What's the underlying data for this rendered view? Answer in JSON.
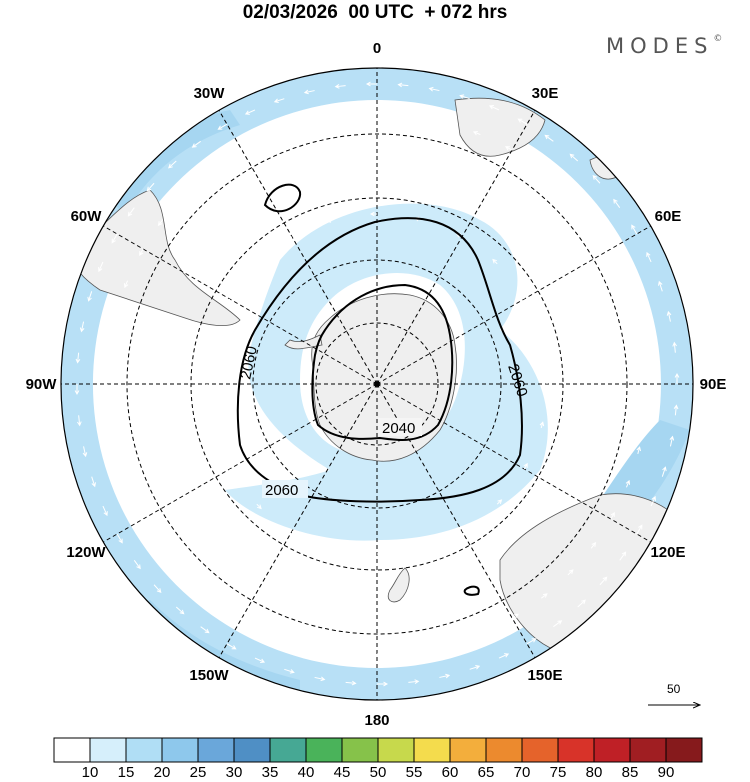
{
  "header": {
    "title": "02/03/2026  00 UTC  + 072 hrs",
    "brand": "MODES",
    "brand_mark": "©"
  },
  "map": {
    "projection": "south-polar-stereographic",
    "longitude_labels": [
      {
        "lon": 0,
        "text": "0"
      },
      {
        "lon": 30,
        "text": "30E"
      },
      {
        "lon": 60,
        "text": "60E"
      },
      {
        "lon": 90,
        "text": "90E"
      },
      {
        "lon": 120,
        "text": "120E"
      },
      {
        "lon": 150,
        "text": "150E"
      },
      {
        "lon": 180,
        "text": "180"
      },
      {
        "lon": -150,
        "text": "150W"
      },
      {
        "lon": -120,
        "text": "120W"
      },
      {
        "lon": -90,
        "text": "90W"
      },
      {
        "lon": -60,
        "text": "60W"
      },
      {
        "lon": -30,
        "text": "30W"
      }
    ],
    "contours": [
      {
        "value": "2040",
        "label": "2040"
      },
      {
        "value": "2060",
        "label": "2060"
      }
    ],
    "reference_vector": {
      "value": "50"
    }
  },
  "colorbar": {
    "labels": [
      "10",
      "15",
      "20",
      "25",
      "30",
      "35",
      "40",
      "45",
      "50",
      "55",
      "60",
      "65",
      "70",
      "75",
      "80",
      "85",
      "90"
    ],
    "colors": [
      "#ffffff",
      "#d6effb",
      "#b0def5",
      "#8ec8ec",
      "#6aa7da",
      "#4f8fc5",
      "#46a894",
      "#4ab35a",
      "#86c24a",
      "#c7d94c",
      "#f4dc4d",
      "#f3ae3c",
      "#ec8a2e",
      "#e5632b",
      "#d83329",
      "#bf2026",
      "#a01e22",
      "#861a1c"
    ]
  }
}
